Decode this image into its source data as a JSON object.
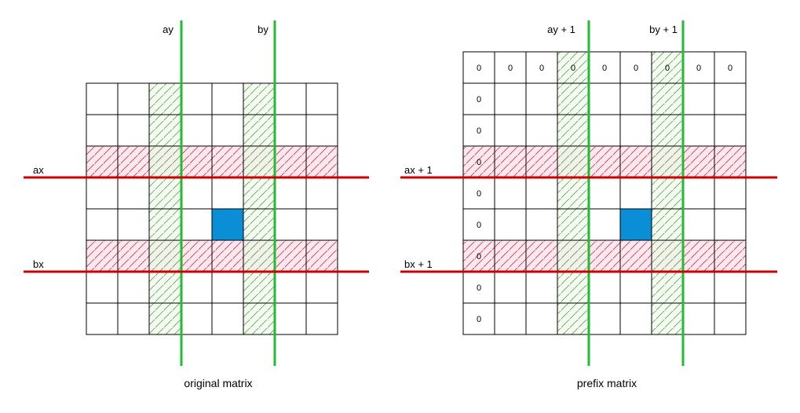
{
  "original": {
    "caption": "original matrix",
    "rows": 8,
    "cols": 8,
    "hatched_rows": [
      2,
      5
    ],
    "hatched_cols": [
      2,
      5
    ],
    "highlight_cell": {
      "row": 4,
      "col": 4
    },
    "col_labels": [
      "ay",
      "by"
    ],
    "row_labels": [
      "ax",
      "bx"
    ]
  },
  "prefix": {
    "caption": "prefix matrix",
    "rows": 9,
    "cols": 9,
    "hatched_rows": [
      3,
      6
    ],
    "hatched_cols": [
      3,
      6
    ],
    "highlight_cell": {
      "row": 5,
      "col": 5
    },
    "col_labels": [
      "ay + 1",
      "by + 1"
    ],
    "row_labels": [
      "ax + 1",
      "bx + 1"
    ],
    "zero_value": "0"
  },
  "colors": {
    "grid": "#000000",
    "red_line": "#cc0000",
    "red_hatch": "#d0305a",
    "red_fill": "#fbe9ee",
    "green_line": "#22bb33",
    "green_hatch": "#5aa84a",
    "green_fill": "#eef7ea",
    "highlight": "#0a8fd6"
  }
}
